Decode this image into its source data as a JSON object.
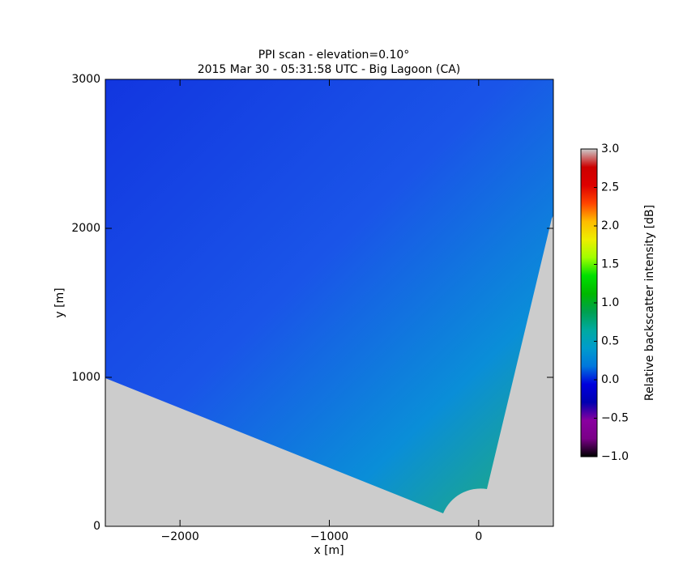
{
  "chart_data": {
    "type": "heatmap",
    "title": "PPI scan - elevation=0.10°",
    "subtitle": "2015 Mar 30 - 05:31:58 UTC - Big Lagoon (CA)",
    "x_label": "x [m]",
    "y_label": "y [m]",
    "xlim": [
      -2500,
      500
    ],
    "xticks": [
      {
        "value": -2000,
        "label": "−2000"
      },
      {
        "value": -1000,
        "label": "−1000"
      },
      0
    ],
    "ylim": [
      0,
      3000
    ],
    "yticks": [
      0,
      1000,
      2000,
      3000
    ],
    "colormap": "nipy_spectral",
    "colorbar": {
      "label": "Relative backscatter intensity [dB]",
      "lim": [
        -1,
        3
      ],
      "ticks": [
        {
          "value": -1,
          "label": "−1.0"
        },
        {
          "value": -0.5,
          "label": "−0.5"
        },
        {
          "value": 0,
          "label": "0.0"
        },
        {
          "value": 0.5,
          "label": "0.5"
        },
        {
          "value": 1,
          "label": "1.0"
        },
        {
          "value": 1.5,
          "label": "1.5"
        },
        {
          "value": 2,
          "label": "2.0"
        },
        {
          "value": 2.5,
          "label": "2.5"
        },
        {
          "value": 3,
          "label": "3.0"
        }
      ]
    }
  }
}
